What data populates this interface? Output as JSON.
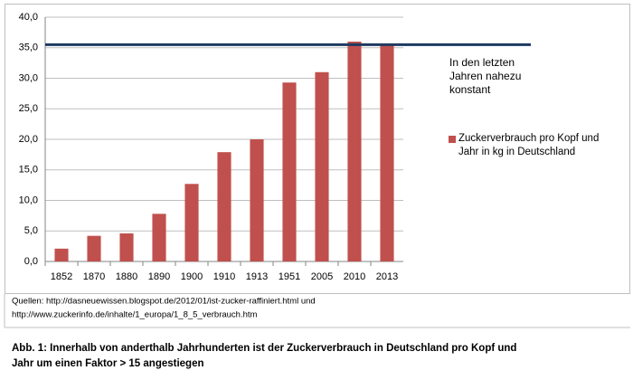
{
  "chart_data": {
    "type": "bar",
    "categories": [
      "1852",
      "1870",
      "1880",
      "1890",
      "1900",
      "1910",
      "1913",
      "1951",
      "2005",
      "2010",
      "2013"
    ],
    "series": [
      {
        "name": "Zuckerverbrauch pro Kopf und Jahr in  kg in Deutschland",
        "color": "#c0504d",
        "values": [
          2.1,
          4.2,
          4.6,
          7.8,
          12.7,
          17.9,
          20.0,
          29.3,
          31.0,
          36.0,
          35.5
        ]
      }
    ],
    "ylim": [
      0,
      40
    ],
    "yticks": [
      {
        "value": 0,
        "label": "0,0"
      },
      {
        "value": 5,
        "label": "5,0"
      },
      {
        "value": 10,
        "label": "10,0"
      },
      {
        "value": 15,
        "label": "15,0"
      },
      {
        "value": 20,
        "label": "20,0"
      },
      {
        "value": 25,
        "label": "25,0"
      },
      {
        "value": 30,
        "label": "30,0"
      },
      {
        "value": 35,
        "label": "35,0"
      },
      {
        "value": 40,
        "label": "40,0"
      }
    ],
    "grid": true,
    "reference_line": {
      "value": 35.5,
      "color": "#1f3a60"
    },
    "annotation": [
      "In den letzten",
      "Jahren nahezu",
      "konstant"
    ],
    "sources": [
      "Quellen: http://dasneuewissen.blogspot.de/2012/01/ist-zucker-raffiniert.html und",
      "http://www.zuckerinfo.de/inhalte/1_europa/1_8_5_verbrauch.htm"
    ],
    "caption": [
      "Abb. 1: Innerhalb von anderthalb Jahrhunderten ist der Zuckerverbrauch in Deutschland pro Kopf und",
      "Jahr um einen Faktor > 15 angestiegen"
    ]
  }
}
